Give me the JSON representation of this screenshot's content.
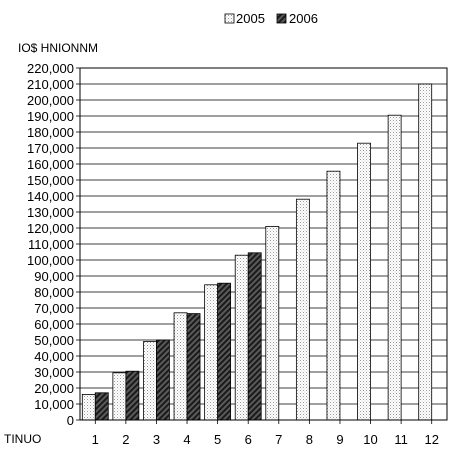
{
  "chart_data": {
    "type": "bar",
    "title": "",
    "ylabel": "IO$ HNIONNM",
    "xlabel": "TINUO",
    "categories": [
      "1",
      "2",
      "3",
      "4",
      "5",
      "6",
      "7",
      "8",
      "9",
      "10",
      "11",
      "12"
    ],
    "series": [
      {
        "name": "2005",
        "pattern": "dotted-light",
        "values": [
          16000,
          29500,
          49000,
          67000,
          84500,
          103000,
          121000,
          138000,
          155500,
          173000,
          190500,
          210000
        ]
      },
      {
        "name": "2006",
        "pattern": "hatched-dark",
        "values": [
          17000,
          30500,
          50000,
          66500,
          85500,
          104500,
          null,
          null,
          null,
          null,
          null,
          null
        ]
      }
    ],
    "yticks": [
      "0",
      "10,000",
      "20,000",
      "30,000",
      "40,000",
      "50,000",
      "60,000",
      "70,000",
      "80,000",
      "90,000",
      "100,000",
      "110,000",
      "120,000",
      "130,000",
      "140,000",
      "150,000",
      "160,000",
      "170,000",
      "180,000",
      "190,000",
      "200,000",
      "210,000",
      "220,000"
    ],
    "ylim": [
      0,
      220000
    ],
    "grid": true,
    "legend_position": "top"
  }
}
